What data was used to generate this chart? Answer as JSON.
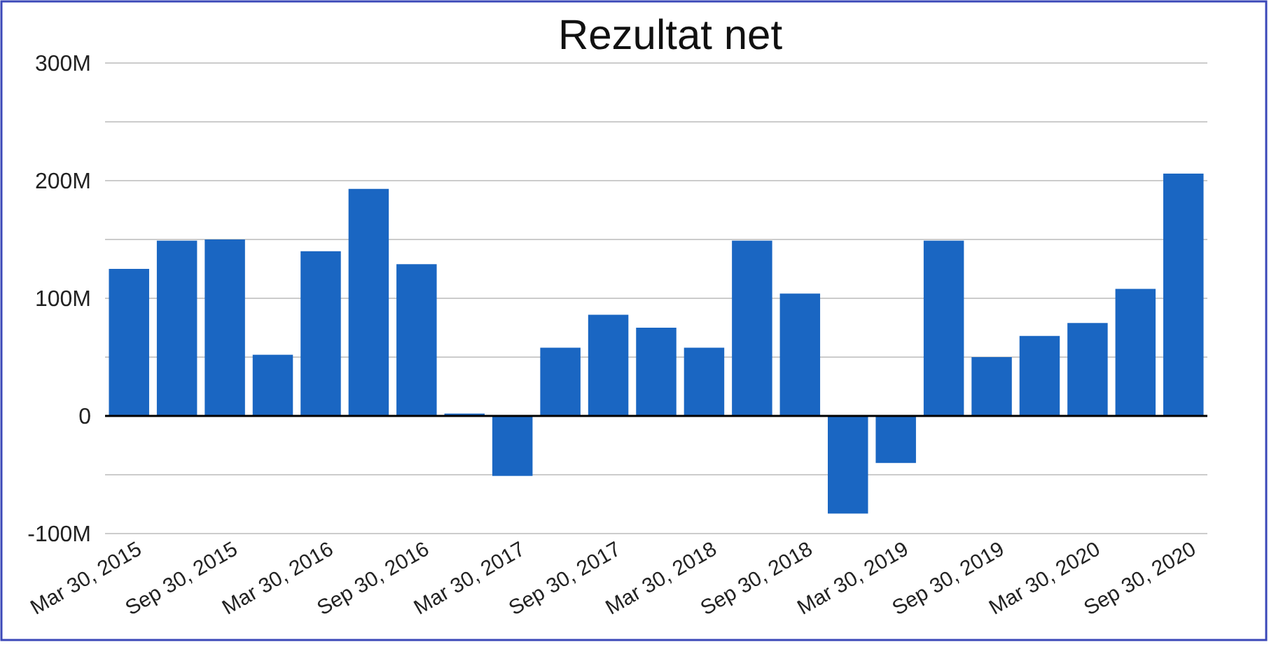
{
  "chart_data": {
    "type": "bar",
    "title": "Rezultat net",
    "categories": [
      "Mar 30, 2015",
      null,
      "Sep 30, 2015",
      null,
      "Mar 30, 2016",
      null,
      "Sep 30, 2016",
      null,
      "Mar 30, 2017",
      null,
      "Sep 30, 2017",
      null,
      "Mar 30, 2018",
      null,
      "Sep 30, 2018",
      null,
      "Mar 30, 2019",
      null,
      "Sep 30, 2019",
      null,
      "Mar 30, 2020",
      null,
      "Sep 30, 2020"
    ],
    "values": [
      125,
      149,
      150,
      52,
      140,
      193,
      129,
      2,
      -51,
      58,
      86,
      75,
      58,
      149,
      104,
      -83,
      -40,
      149,
      50,
      68,
      79,
      108,
      206
    ],
    "color": "#1a66c2",
    "ylim": [
      -100,
      300
    ],
    "yticks": [
      {
        "value": -100,
        "label": "-100M"
      },
      {
        "value": -50,
        "label": null
      },
      {
        "value": 0,
        "label": "0"
      },
      {
        "value": 50,
        "label": null
      },
      {
        "value": 100,
        "label": "100M"
      },
      {
        "value": 150,
        "label": null
      },
      {
        "value": 200,
        "label": "200M"
      },
      {
        "value": 250,
        "label": null
      },
      {
        "value": 300,
        "label": "300M"
      }
    ],
    "grid": "y"
  }
}
